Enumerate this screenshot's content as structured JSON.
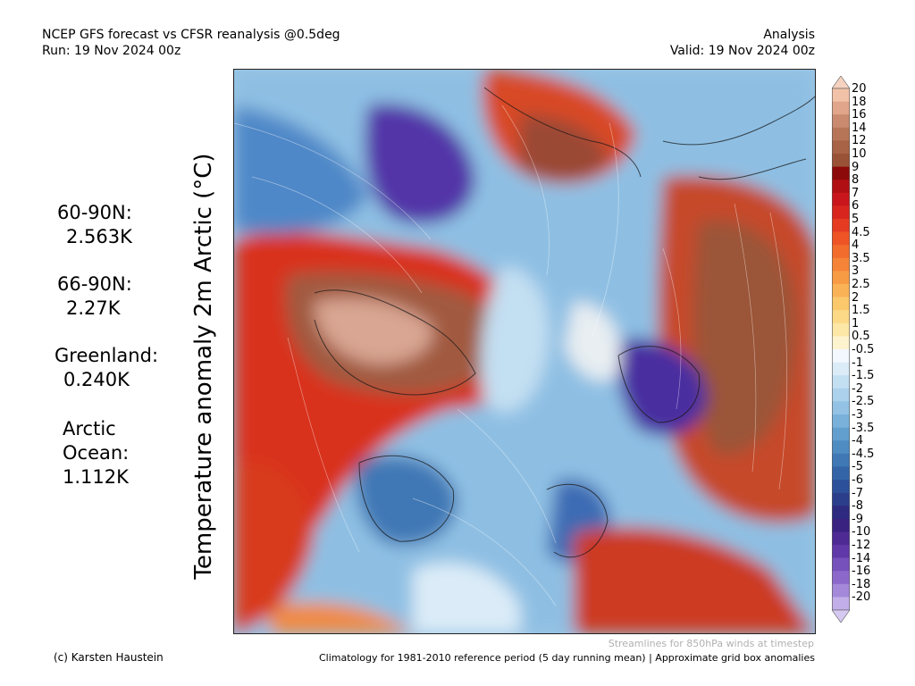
{
  "header": {
    "title_line1": "NCEP GFS forecast vs CFSR reanalysis @0.5deg",
    "title_line2": "Run: 19 Nov 2024 00z",
    "right_line1": "Analysis",
    "right_line2": "Valid: 19 Nov 2024 00z"
  },
  "vertical_title": "Temperature anomaly 2m Arctic (°C)",
  "stats": [
    {
      "label": "60-90N:",
      "value": "2.563K"
    },
    {
      "label": "66-90N:",
      "value": "2.27K"
    },
    {
      "label": "Greenland:",
      "value": "0.240K"
    },
    {
      "label": "Arctic",
      "label2": "Ocean:",
      "value": "1.112K"
    }
  ],
  "colorbar": {
    "ticks": [
      "20",
      "18",
      "16",
      "14",
      "12",
      "10",
      "9",
      "8",
      "7",
      "6",
      "5",
      "4.5",
      "4",
      "3.5",
      "3",
      "2.5",
      "2",
      "1.5",
      "1",
      "0.5",
      "-0.5",
      "-1",
      "-1.5",
      "-2",
      "-2.5",
      "-3",
      "-3.5",
      "-4",
      "-4.5",
      "-5",
      "-6",
      "-7",
      "-8",
      "-9",
      "-10",
      "-12",
      "-14",
      "-16",
      "-18",
      "-20"
    ],
    "colors": [
      "#f2c2a8",
      "#e0a58a",
      "#c98a6f",
      "#b77558",
      "#a86246",
      "#9a5236",
      "#8c0a0a",
      "#b00f14",
      "#c8161c",
      "#d8261e",
      "#e53b22",
      "#ee5426",
      "#f26d2d",
      "#f58438",
      "#f89b45",
      "#f9b256",
      "#fbc86c",
      "#fcd986",
      "#fde7a6",
      "#fdf3cf",
      "#f2f8fd",
      "#dbecf8",
      "#c3dff2",
      "#acd1ec",
      "#93c2e4",
      "#79b1da",
      "#629fce",
      "#4e8cc2",
      "#3f78b5",
      "#3464a8",
      "#2d509b",
      "#2b3e8c",
      "#2d2a80",
      "#3a2280",
      "#4d2a94",
      "#6138a8",
      "#7650bb",
      "#8c68cb",
      "#a488d9",
      "#c2aee8"
    ],
    "top_arrow_color": "#f6d2c0",
    "bottom_arrow_color": "#d5c8f1"
  },
  "footer": {
    "credit": "(c) Karsten Haustein",
    "streamline_note": "Streamlines for 850hPa winds at timestep",
    "climatology_note": "Climatology for 1981-2010 reference period (5 day running mean) | Approximate grid box anomalies"
  }
}
